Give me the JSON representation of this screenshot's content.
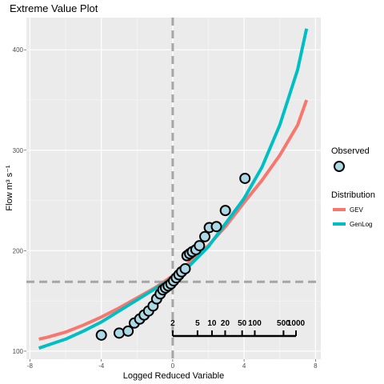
{
  "chart_data": {
    "type": "scatter",
    "title": "Extreme Value Plot",
    "xlabel": "Logged Reduced Variable",
    "ylabel": "Flow m³ s⁻¹",
    "xlim": [
      -8.2,
      8.3
    ],
    "ylim": [
      92,
      432
    ],
    "x_ticks": [
      -8,
      -4,
      0,
      4,
      8
    ],
    "y_ticks": [
      100,
      200,
      300,
      400
    ],
    "x_tick_labels": [
      "-8",
      "-4",
      "0",
      "4",
      "8"
    ],
    "y_tick_labels": [
      "100",
      "200",
      "300",
      "400"
    ],
    "grid": true,
    "reference_lines": {
      "vertical_x": 0,
      "horizontal_y": 169
    },
    "observed": {
      "name": "Observed",
      "color": "#add8e6",
      "x": [
        -4.0,
        -3.0,
        -2.5,
        -2.15,
        -1.85,
        -1.6,
        -1.35,
        -1.1,
        -0.9,
        -0.7,
        -0.55,
        -0.4,
        -0.25,
        -0.1,
        0.05,
        0.2,
        0.35,
        0.5,
        0.7,
        0.8,
        0.95,
        1.1,
        1.3,
        1.5,
        1.8,
        2.05,
        2.45,
        2.95,
        4.05
      ],
      "y": [
        116,
        118,
        120,
        128,
        132,
        136,
        140,
        145,
        152,
        157,
        161,
        163,
        165,
        167,
        170,
        173,
        176,
        179,
        182,
        195,
        197,
        199,
        201,
        205,
        214,
        223,
        224,
        240,
        272
      ]
    },
    "series": [
      {
        "name": "GEV",
        "color": "#f8766d",
        "x": [
          -7.5,
          -7,
          -6,
          -5,
          -4,
          -3,
          -2,
          -1,
          0,
          1,
          2,
          3,
          4,
          5,
          6,
          7,
          7.5
        ],
        "y": [
          112,
          114,
          119,
          126,
          134,
          143,
          153,
          163,
          175,
          189,
          205,
          225,
          248,
          270,
          295,
          325,
          350
        ]
      },
      {
        "name": "GenLog",
        "color": "#00bfc4",
        "x": [
          -7.5,
          -7,
          -6,
          -5,
          -4,
          -3,
          -2,
          -1,
          0,
          1,
          2,
          3,
          4,
          5,
          6,
          7,
          7.5
        ],
        "y": [
          103,
          106,
          112,
          120,
          129,
          140,
          151,
          162,
          173,
          186,
          204,
          228,
          252,
          283,
          325,
          380,
          421
        ]
      }
    ],
    "return_period_scale": {
      "labels": [
        "2",
        "5",
        "10",
        "20",
        "50",
        "100",
        "500",
        "1000"
      ],
      "reduced_variate": [
        0,
        1.39,
        2.2,
        2.94,
        3.89,
        4.6,
        6.21,
        6.91
      ]
    },
    "legend": {
      "placement": "right",
      "observed_title": "Observed",
      "distribution_title": "Distribution"
    }
  }
}
